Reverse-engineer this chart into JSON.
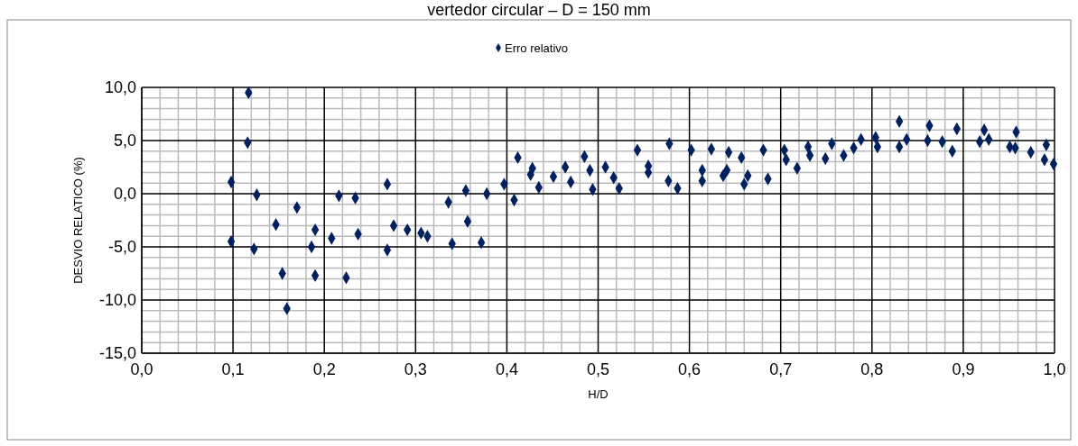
{
  "chart_data": {
    "type": "scatter",
    "title": "vertedor circular – D = 150 mm",
    "xlabel": "H/D",
    "ylabel": "DESVIO RELATICO (%)",
    "legend": "top",
    "marker": "diamond",
    "grid": true,
    "xlim": [
      0,
      1
    ],
    "ylim": [
      -15,
      10
    ],
    "xticks": [
      {
        "value": 0,
        "label": "0,0"
      },
      {
        "value": 0.1,
        "label": "0,1"
      },
      {
        "value": 0.2,
        "label": "0,2"
      },
      {
        "value": 0.3,
        "label": "0,3"
      },
      {
        "value": 0.4,
        "label": "0,4"
      },
      {
        "value": 0.5,
        "label": "0,5"
      },
      {
        "value": 0.6,
        "label": "0,6"
      },
      {
        "value": 0.7,
        "label": "0,7"
      },
      {
        "value": 0.8,
        "label": "0,8"
      },
      {
        "value": 0.9,
        "label": "0,9"
      },
      {
        "value": 1,
        "label": "1,0"
      }
    ],
    "yticks": [
      {
        "value": -15,
        "label": "-15,0"
      },
      {
        "value": -10,
        "label": "-10,0"
      },
      {
        "value": -5,
        "label": "-5,0"
      },
      {
        "value": 0,
        "label": "0,0"
      },
      {
        "value": 5,
        "label": "5,0"
      },
      {
        "value": 10,
        "label": "10,0"
      }
    ],
    "series": [
      {
        "name": "Erro relativo",
        "color": "#002060",
        "x": [
          0.117,
          0.116,
          0.098,
          0.126,
          0.17,
          0.269,
          0.216,
          0.234,
          0.147,
          0.19,
          0.276,
          0.291,
          0.208,
          0.237,
          0.098,
          0.123,
          0.186,
          0.269,
          0.154,
          0.19,
          0.224,
          0.159,
          0.306,
          0.313,
          0.336,
          0.34,
          0.355,
          0.357,
          0.372,
          0.378,
          0.397,
          0.408,
          0.412,
          0.428,
          0.426,
          0.435,
          0.451,
          0.464,
          0.47,
          0.485,
          0.491,
          0.494,
          0.508,
          0.517,
          0.523,
          0.543,
          0.555,
          0.555,
          0.578,
          0.577,
          0.587,
          0.602,
          0.614,
          0.614,
          0.624,
          0.641,
          0.637,
          0.643,
          0.657,
          0.664,
          0.66,
          0.681,
          0.686,
          0.704,
          0.706,
          0.718,
          0.73,
          0.732,
          0.749,
          0.756,
          0.769,
          0.78,
          0.788,
          0.804,
          0.806,
          0.83,
          0.83,
          0.838,
          0.861,
          0.863,
          0.877,
          0.888,
          0.893,
          0.918,
          0.923,
          0.928,
          0.951,
          0.958,
          0.957,
          0.974,
          0.989,
          0.991,
          0.999
        ],
        "values": [
          9.5,
          4.8,
          1.1,
          -0.1,
          -1.3,
          0.9,
          -0.2,
          -0.4,
          -2.9,
          -3.4,
          -3.0,
          -3.4,
          -4.2,
          -3.8,
          -4.5,
          -5.2,
          -5.0,
          -5.3,
          -7.5,
          -7.7,
          -7.9,
          -10.8,
          -3.7,
          -4.0,
          -0.8,
          -4.7,
          0.3,
          -2.6,
          -4.6,
          0.0,
          0.9,
          -0.6,
          3.4,
          2.4,
          1.8,
          0.6,
          1.6,
          2.5,
          1.1,
          3.5,
          2.2,
          0.4,
          2.5,
          1.5,
          0.5,
          4.1,
          2.6,
          2.0,
          4.7,
          1.2,
          0.5,
          4.1,
          2.2,
          1.2,
          4.2,
          2.2,
          1.7,
          3.9,
          3.4,
          1.7,
          0.9,
          4.1,
          1.4,
          4.1,
          3.2,
          2.4,
          4.4,
          3.6,
          3.3,
          4.7,
          3.6,
          4.3,
          5.1,
          5.3,
          4.4,
          6.8,
          4.4,
          5.1,
          5.0,
          6.4,
          4.9,
          4.0,
          6.1,
          4.9,
          6.0,
          5.1,
          4.4,
          5.8,
          4.3,
          3.9,
          3.2,
          4.6,
          2.8
        ]
      }
    ]
  }
}
